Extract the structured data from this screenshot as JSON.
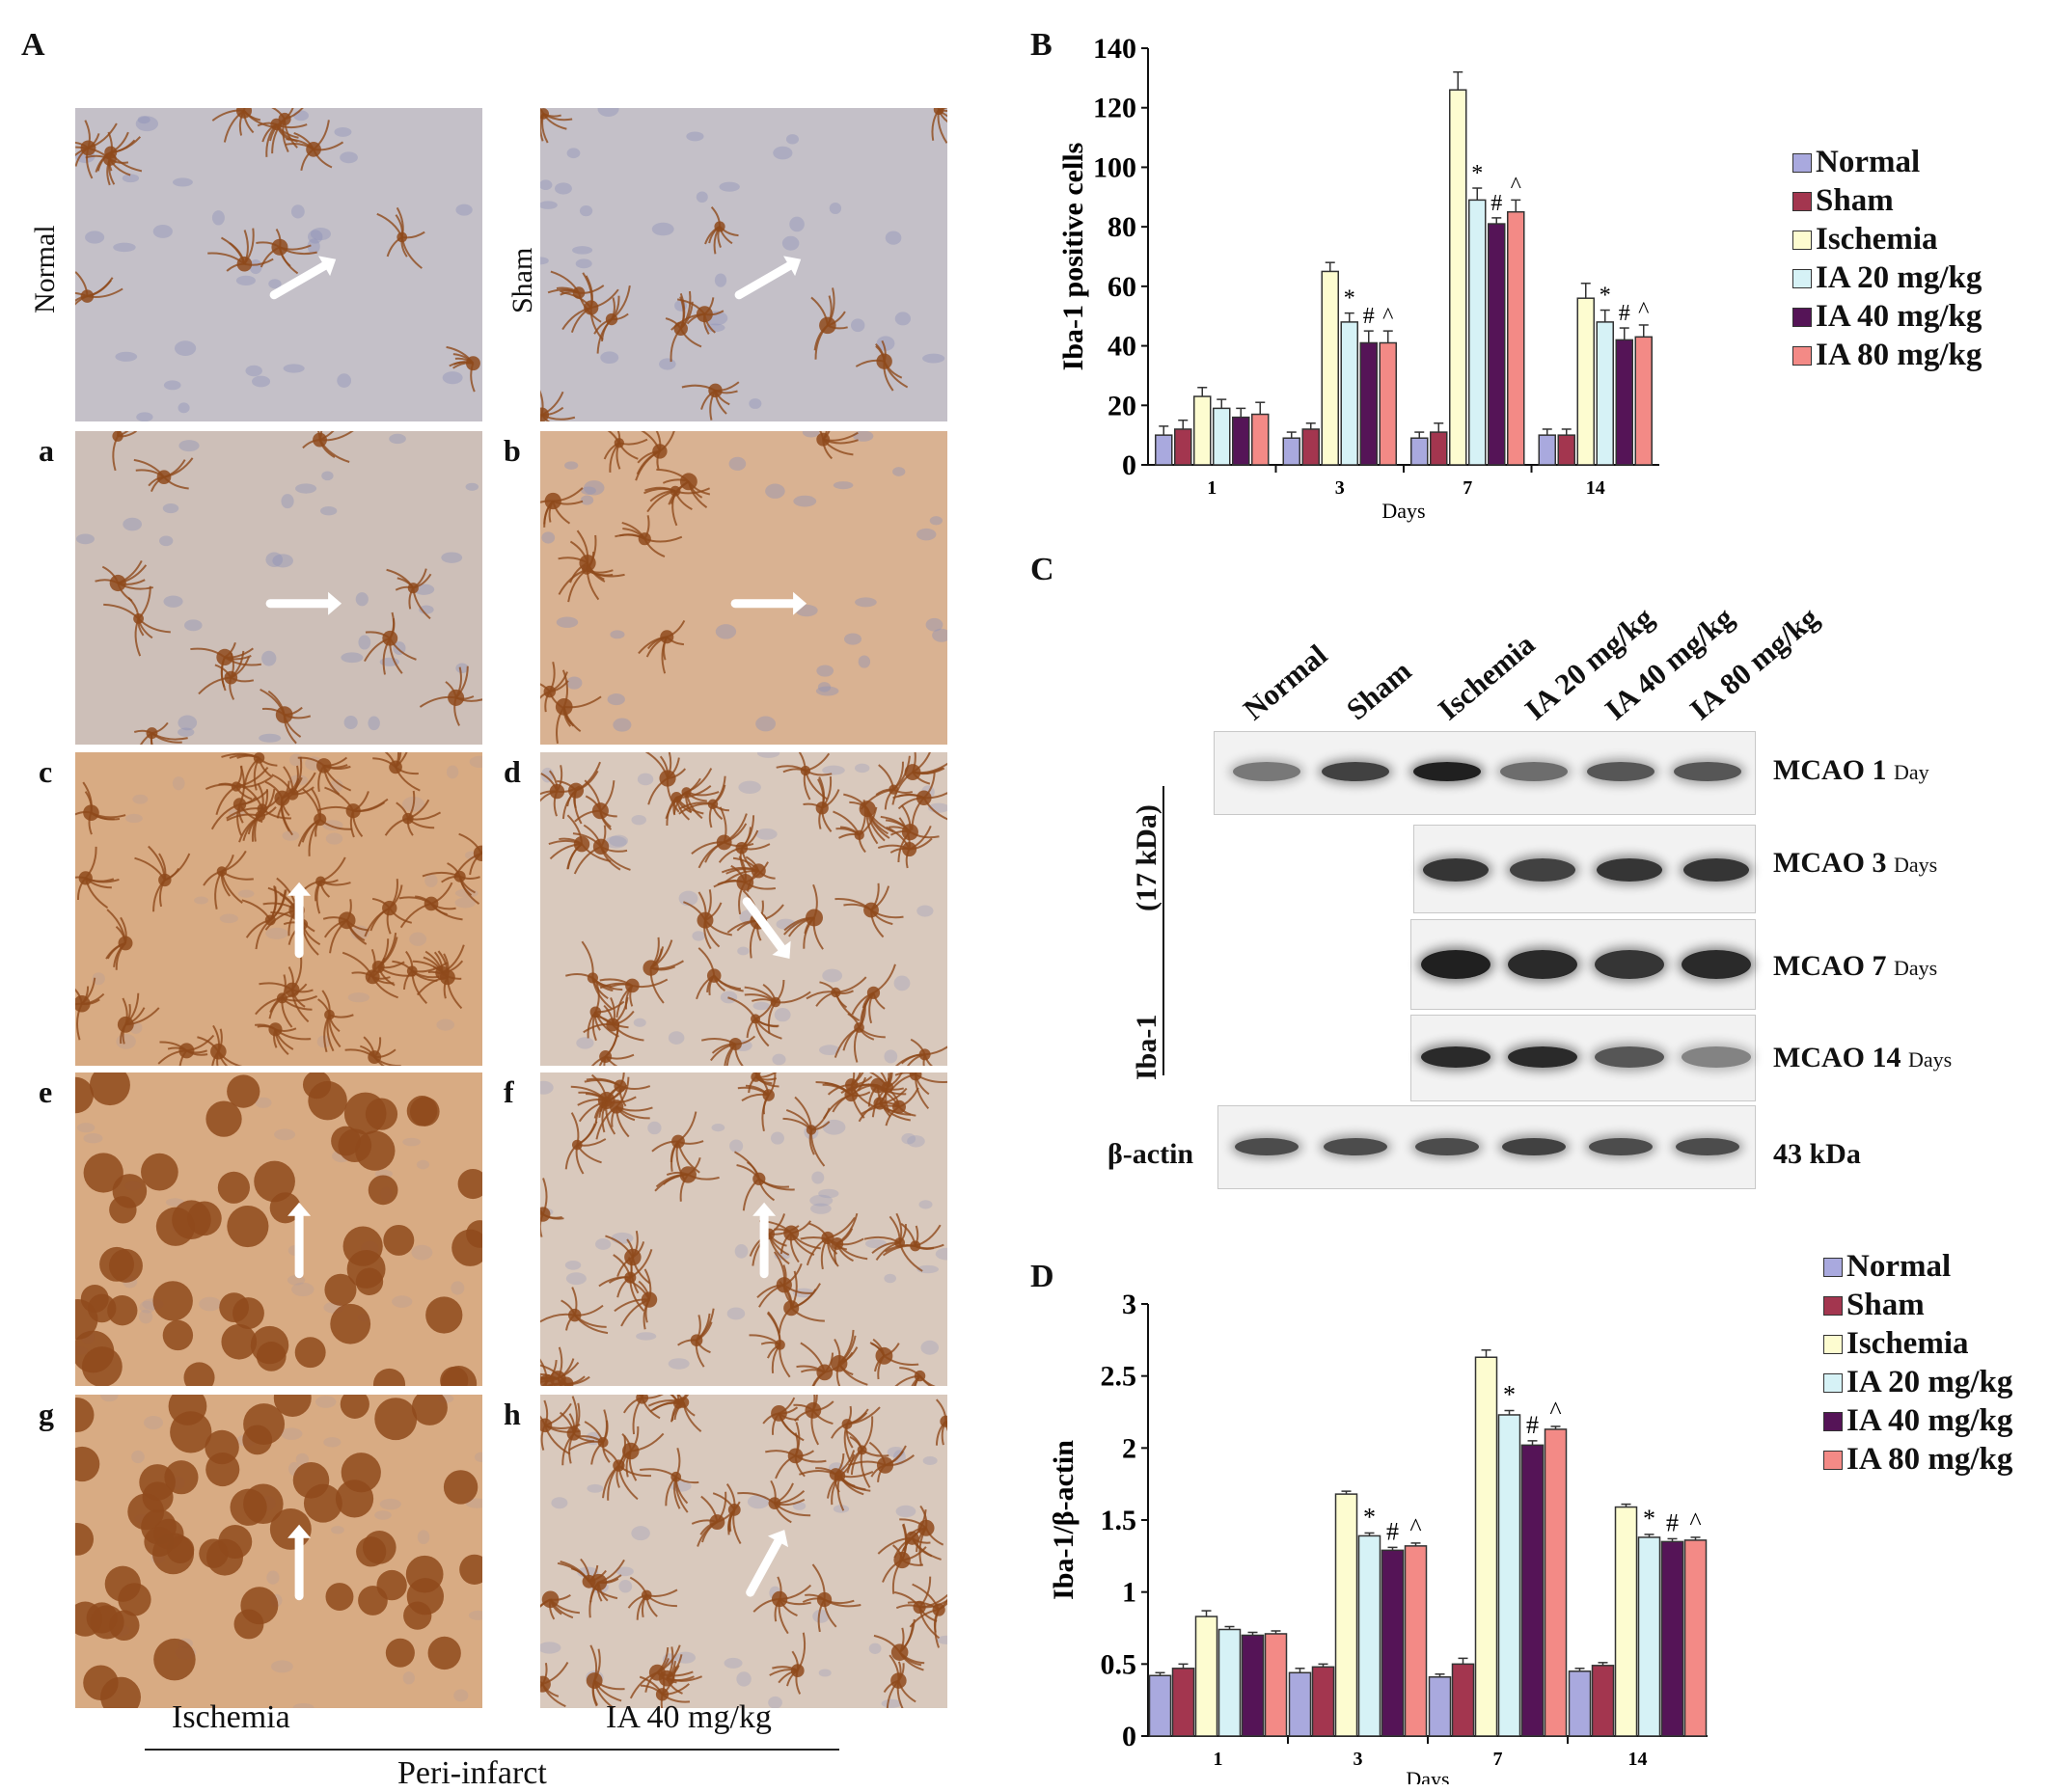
{
  "panels": {
    "A": "A",
    "B": "B",
    "C": "C",
    "D": "D"
  },
  "panel_a": {
    "row_labels": {
      "normal": "Normal",
      "sham": "Sham"
    },
    "sub_labels": [
      "a",
      "b",
      "c",
      "d",
      "e",
      "f",
      "g",
      "h"
    ],
    "col_captions": {
      "left": "Ischemia",
      "right": "IA 40 mg/kg"
    },
    "group_caption": "Peri-infarct",
    "colors": {
      "tissue_light": "#c9c3c9",
      "tissue_brown": "#b06a35",
      "stain": "#8f4a1c",
      "nuclei": "#8a8fb8",
      "arrow": "#ffffff"
    }
  },
  "legend": {
    "items": [
      "Normal",
      "Sham",
      "Ischemia",
      "IA  20 mg/kg",
      "IA  40 mg/kg",
      "IA  80 mg/kg"
    ],
    "colors": [
      "#a9a9de",
      "#a3364f",
      "#fdfcd0",
      "#d6f2f6",
      "#551457",
      "#f38a86"
    ]
  },
  "blot": {
    "lanes": [
      "Normal",
      "Sham",
      "Ischemia",
      "IA   20 mg/kg",
      "IA   40 mg/kg",
      "IA   80 mg/kg"
    ],
    "rows": [
      {
        "label": "MCAO",
        "day": "1",
        "unit": "Day"
      },
      {
        "label": "MCAO",
        "day": "3",
        "unit": "Days"
      },
      {
        "label": "MCAO",
        "day": "7",
        "unit": "Days"
      },
      {
        "label": "MCAO",
        "day": "14",
        "unit": "Days"
      }
    ],
    "iba_label": "Iba-1",
    "kda_label": "(17 kDa)",
    "actin_label": "β-actin",
    "actin_kda": "43 kDa"
  },
  "chart_data": [
    {
      "panel": "B",
      "type": "bar",
      "ylabel": "Iba-1 positive cells",
      "xlabel": "Days",
      "categories": [
        "1",
        "3",
        "7",
        "14"
      ],
      "ylim": [
        0,
        140
      ],
      "yticks": [
        "0",
        "20",
        "40",
        "60",
        "80",
        "100",
        "120",
        "140"
      ],
      "series": [
        {
          "name": "Normal",
          "values": [
            10,
            9,
            9,
            10
          ],
          "errors": [
            3,
            2,
            2,
            2
          ]
        },
        {
          "name": "Sham",
          "values": [
            12,
            12,
            11,
            10
          ],
          "errors": [
            3,
            2,
            3,
            2
          ]
        },
        {
          "name": "Ischemia",
          "values": [
            23,
            65,
            126,
            56
          ],
          "errors": [
            3,
            3,
            6,
            5
          ]
        },
        {
          "name": "IA  20 mg/kg",
          "values": [
            19,
            48,
            89,
            48
          ],
          "errors": [
            3,
            3,
            4,
            4
          ]
        },
        {
          "name": "IA  40 mg/kg",
          "values": [
            16,
            41,
            81,
            42
          ],
          "errors": [
            3,
            4,
            2,
            4
          ]
        },
        {
          "name": "IA  80 mg/kg",
          "values": [
            17,
            41,
            85,
            43
          ],
          "errors": [
            4,
            4,
            4,
            4
          ]
        }
      ],
      "annotations": [
        {
          "category": "3",
          "series": "IA  20 mg/kg",
          "text": "*"
        },
        {
          "category": "3",
          "series": "IA  40 mg/kg",
          "text": "#"
        },
        {
          "category": "3",
          "series": "IA  80 mg/kg",
          "text": "^"
        },
        {
          "category": "7",
          "series": "IA  20 mg/kg",
          "text": "*"
        },
        {
          "category": "7",
          "series": "IA  40 mg/kg",
          "text": "#"
        },
        {
          "category": "7",
          "series": "IA  80 mg/kg",
          "text": "^"
        },
        {
          "category": "14",
          "series": "IA  20 mg/kg",
          "text": "*"
        },
        {
          "category": "14",
          "series": "IA  40 mg/kg",
          "text": "#"
        },
        {
          "category": "14",
          "series": "IA  80 mg/kg",
          "text": "^"
        }
      ],
      "legend_position": "right"
    },
    {
      "panel": "D",
      "type": "bar",
      "ylabel": "Iba-1/β-actin",
      "xlabel": "Days",
      "categories": [
        "1",
        "3",
        "7",
        "14"
      ],
      "ylim": [
        0,
        3
      ],
      "yticks": [
        "0",
        "0.5",
        "1",
        "1.5",
        "2",
        "2.5",
        "3"
      ],
      "series": [
        {
          "name": "Normal",
          "values": [
            0.42,
            0.44,
            0.41,
            0.45
          ],
          "errors": [
            0.02,
            0.03,
            0.02,
            0.02
          ]
        },
        {
          "name": "Sham",
          "values": [
            0.47,
            0.48,
            0.5,
            0.49
          ],
          "errors": [
            0.03,
            0.02,
            0.04,
            0.02
          ]
        },
        {
          "name": "Ischemia",
          "values": [
            0.83,
            1.68,
            2.63,
            1.59
          ],
          "errors": [
            0.04,
            0.02,
            0.05,
            0.02
          ]
        },
        {
          "name": "IA  20 mg/kg",
          "values": [
            0.74,
            1.39,
            2.23,
            1.38
          ],
          "errors": [
            0.02,
            0.02,
            0.03,
            0.02
          ]
        },
        {
          "name": "IA  40 mg/kg",
          "values": [
            0.7,
            1.29,
            2.02,
            1.35
          ],
          "errors": [
            0.02,
            0.02,
            0.03,
            0.02
          ]
        },
        {
          "name": "IA  80 mg/kg",
          "values": [
            0.71,
            1.32,
            2.13,
            1.36
          ],
          "errors": [
            0.02,
            0.02,
            0.02,
            0.02
          ]
        }
      ],
      "annotations": [
        {
          "category": "3",
          "series": "IA  20 mg/kg",
          "text": "*"
        },
        {
          "category": "3",
          "series": "IA  40 mg/kg",
          "text": "#"
        },
        {
          "category": "3",
          "series": "IA  80 mg/kg",
          "text": "^"
        },
        {
          "category": "7",
          "series": "IA  20 mg/kg",
          "text": "*"
        },
        {
          "category": "7",
          "series": "IA  40 mg/kg",
          "text": "#"
        },
        {
          "category": "7",
          "series": "IA  80 mg/kg",
          "text": "^"
        },
        {
          "category": "14",
          "series": "IA  20 mg/kg",
          "text": "*"
        },
        {
          "category": "14",
          "series": "IA  40 mg/kg",
          "text": "#"
        },
        {
          "category": "14",
          "series": "IA  80 mg/kg",
          "text": "^"
        }
      ],
      "legend_position": "top-right"
    }
  ]
}
